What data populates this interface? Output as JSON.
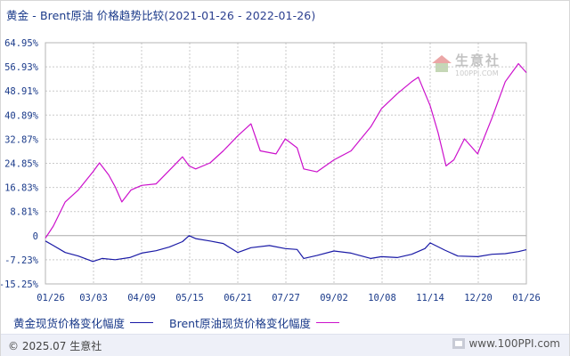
{
  "header": {
    "title": "黄金 - Brent原油 价格趋势比较",
    "date_range": "(2021-01-26 - 2022-01-26)"
  },
  "watermark": {
    "name": "生意社",
    "url": "100PPI.COM"
  },
  "footer": {
    "copyright": "© 2025.07 生意社",
    "site": "www.100PPI.com"
  },
  "colors": {
    "gold_series": "#1a1aa6",
    "brent_series": "#cc11cc",
    "grid": "#c9c9c9",
    "zero_line": "#aaaaaa",
    "text": "#1a3a8a"
  },
  "chart_data": {
    "type": "line",
    "title": "黄金 - Brent原油 价格趋势比较",
    "ylabel": "",
    "xlabel": "",
    "y_unit": "%",
    "ylim": [
      -15.25,
      64.95
    ],
    "y_ticks": [
      "64.95%",
      "56.93%",
      "48.91%",
      "40.89%",
      "32.87%",
      "24.85%",
      "16.83%",
      "8.81%",
      "0",
      "-7.23%",
      "-15.25%"
    ],
    "x_ticks": [
      "01/26",
      "03/03",
      "04/09",
      "05/15",
      "06/21",
      "07/27",
      "09/02",
      "10/08",
      "11/14",
      "12/20",
      "01/26"
    ],
    "grid": true,
    "legend_position": "bottom-left",
    "series": [
      {
        "name": "黄金现货价格变化幅度",
        "color": "#1a1aa6",
        "x": [
          "2021-01-26",
          "2021-02-01",
          "2021-02-10",
          "2021-02-20",
          "2021-03-03",
          "2021-03-10",
          "2021-03-20",
          "2021-03-31",
          "2021-04-09",
          "2021-04-20",
          "2021-04-30",
          "2021-05-10",
          "2021-05-15",
          "2021-05-20",
          "2021-05-31",
          "2021-06-10",
          "2021-06-21",
          "2021-07-01",
          "2021-07-15",
          "2021-07-27",
          "2021-08-05",
          "2021-08-10",
          "2021-08-20",
          "2021-09-02",
          "2021-09-15",
          "2021-09-30",
          "2021-10-08",
          "2021-10-20",
          "2021-10-31",
          "2021-11-10",
          "2021-11-14",
          "2021-11-25",
          "2021-12-05",
          "2021-12-20",
          "2021-12-31",
          "2022-01-10",
          "2022-01-20",
          "2022-01-26"
        ],
        "y": [
          -1.0,
          -2.5,
          -4.8,
          -6.0,
          -7.8,
          -6.8,
          -7.2,
          -6.5,
          -5.0,
          -4.2,
          -3.0,
          -1.2,
          0.8,
          -0.2,
          -1.0,
          -1.8,
          -4.8,
          -3.2,
          -2.5,
          -3.5,
          -3.8,
          -6.8,
          -5.8,
          -4.3,
          -5.0,
          -6.8,
          -6.2,
          -6.5,
          -5.4,
          -3.5,
          -1.6,
          -4.0,
          -6.0,
          -6.2,
          -5.4,
          -5.2,
          -4.5,
          -3.9
        ]
      },
      {
        "name": "Brent原油现货价格变化幅度",
        "color": "#cc11cc",
        "x": [
          "2021-01-26",
          "2021-02-01",
          "2021-02-10",
          "2021-02-20",
          "2021-03-03",
          "2021-03-08",
          "2021-03-15",
          "2021-03-20",
          "2021-03-25",
          "2021-04-01",
          "2021-04-09",
          "2021-04-20",
          "2021-04-30",
          "2021-05-10",
          "2021-05-15",
          "2021-05-20",
          "2021-05-31",
          "2021-06-10",
          "2021-06-21",
          "2021-07-01",
          "2021-07-08",
          "2021-07-20",
          "2021-07-27",
          "2021-08-05",
          "2021-08-10",
          "2021-08-20",
          "2021-09-02",
          "2021-09-15",
          "2021-09-30",
          "2021-10-08",
          "2021-10-20",
          "2021-10-31",
          "2021-11-05",
          "2021-11-14",
          "2021-11-20",
          "2021-11-26",
          "2021-12-02",
          "2021-12-10",
          "2021-12-20",
          "2021-12-31",
          "2022-01-10",
          "2022-01-20",
          "2022-01-26"
        ],
        "y": [
          0.0,
          4.0,
          12.0,
          16.0,
          22.0,
          25.0,
          21.0,
          17.0,
          12.0,
          16.0,
          17.5,
          18.0,
          22.5,
          27.0,
          24.0,
          23.0,
          25.0,
          29.0,
          34.0,
          38.0,
          29.0,
          28.0,
          33.0,
          30.0,
          23.0,
          22.0,
          26.0,
          29.0,
          37.0,
          43.0,
          48.0,
          52.0,
          53.5,
          44.0,
          35.0,
          24.0,
          26.0,
          33.0,
          28.0,
          40.0,
          52.0,
          58.0,
          55.0
        ]
      }
    ]
  }
}
